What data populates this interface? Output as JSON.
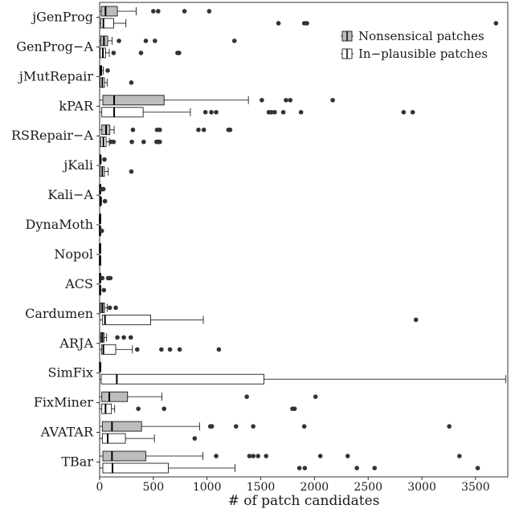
{
  "chart_data": {
    "type": "boxplot",
    "orientation": "horizontal",
    "xlabel": "# of patch candidates",
    "ylabel": "",
    "xlim": [
      0,
      3800
    ],
    "xticks": [
      0,
      500,
      1000,
      1500,
      2000,
      2500,
      3000,
      3500
    ],
    "grid": false,
    "legend_position": "top-right",
    "series": [
      {
        "name": "Nonsensical patches",
        "color": "#bdbdbd"
      },
      {
        "name": "In−plausible patches",
        "color": "#ffffff"
      }
    ],
    "categories": [
      "jGenProg",
      "GenProg−A",
      "jMutRepair",
      "kPAR",
      "RSRepair−A",
      "jKali",
      "Kali−A",
      "DynaMoth",
      "Nopol",
      "ACS",
      "Cardumen",
      "ARJA",
      "SimFix",
      "FixMiner",
      "AVATAR",
      "TBar"
    ],
    "boxes": [
      {
        "category": "jGenProg",
        "nonsensical": {
          "min": 0,
          "q1": 15,
          "median": 55,
          "q3": 165,
          "max": 340,
          "outliers": [
            500,
            545,
            790,
            1020
          ]
        },
        "inplausible": {
          "min": 0,
          "q1": 10,
          "median": 35,
          "q3": 130,
          "max": 245,
          "outliers": [
            1665,
            1905,
            1930,
            3690
          ]
        }
      },
      {
        "category": "GenProg−A",
        "nonsensical": {
          "min": 0,
          "q1": 10,
          "median": 40,
          "q3": 75,
          "max": 115,
          "outliers": [
            180,
            430,
            515,
            1255
          ]
        },
        "inplausible": {
          "min": 0,
          "q1": 5,
          "median": 30,
          "q3": 55,
          "max": 90,
          "outliers": [
            130,
            385,
            725,
            740
          ]
        }
      },
      {
        "category": "jMutRepair",
        "nonsensical": {
          "min": 0,
          "q1": 2,
          "median": 10,
          "q3": 20,
          "max": 35,
          "outliers": [
            75
          ]
        },
        "inplausible": {
          "min": 0,
          "q1": 5,
          "median": 25,
          "q3": 45,
          "max": 70,
          "outliers": [
            295
          ]
        }
      },
      {
        "category": "kPAR",
        "nonsensical": {
          "min": 0,
          "q1": 30,
          "median": 135,
          "q3": 600,
          "max": 1385,
          "outliers": [
            1510,
            1735,
            1775,
            2170
          ]
        },
        "inplausible": {
          "min": 0,
          "q1": 20,
          "median": 135,
          "q3": 405,
          "max": 845,
          "outliers": [
            985,
            1040,
            1085,
            1575,
            1600,
            1630,
            1710,
            1875,
            2830,
            2915
          ]
        }
      },
      {
        "category": "RSRepair−A",
        "nonsensical": {
          "min": 0,
          "q1": 20,
          "median": 60,
          "q3": 95,
          "max": 135,
          "outliers": [
            310,
            535,
            560,
            920,
            970,
            1200,
            1215
          ]
        },
        "inplausible": {
          "min": 0,
          "q1": 10,
          "median": 35,
          "q3": 60,
          "max": 90,
          "outliers": [
            105,
            130,
            300,
            410,
            530,
            545,
            560
          ]
        }
      },
      {
        "category": "jKali",
        "nonsensical": {
          "min": 0,
          "q1": 0,
          "median": 5,
          "q3": 10,
          "max": 15,
          "outliers": [
            45
          ]
        },
        "inplausible": {
          "min": 0,
          "q1": 5,
          "median": 25,
          "q3": 45,
          "max": 80,
          "outliers": [
            295
          ]
        }
      },
      {
        "category": "Kali−A",
        "nonsensical": {
          "min": 0,
          "q1": 0,
          "median": 2,
          "q3": 5,
          "max": 10,
          "outliers": [
            20,
            35
          ]
        },
        "inplausible": {
          "min": 0,
          "q1": 0,
          "median": 5,
          "q3": 10,
          "max": 20,
          "outliers": [
            50
          ]
        }
      },
      {
        "category": "DynaMoth",
        "nonsensical": {
          "min": 0,
          "q1": 0,
          "median": 1,
          "q3": 2,
          "max": 3,
          "outliers": []
        },
        "inplausible": {
          "min": 0,
          "q1": 0,
          "median": 1,
          "q3": 3,
          "max": 6,
          "outliers": [
            20
          ]
        }
      },
      {
        "category": "Nopol",
        "nonsensical": {
          "min": 0,
          "q1": 0,
          "median": 1,
          "q3": 2,
          "max": 3,
          "outliers": []
        },
        "inplausible": {
          "min": 0,
          "q1": 0,
          "median": 1,
          "q3": 2,
          "max": 4,
          "outliers": []
        }
      },
      {
        "category": "ACS",
        "nonsensical": {
          "min": 0,
          "q1": 0,
          "median": 2,
          "q3": 5,
          "max": 10,
          "outliers": [
            25,
            80,
            100
          ]
        },
        "inplausible": {
          "min": 0,
          "q1": 0,
          "median": 2,
          "q3": 5,
          "max": 10,
          "outliers": [
            40
          ]
        }
      },
      {
        "category": "Cardumen",
        "nonsensical": {
          "min": 0,
          "q1": 5,
          "median": 25,
          "q3": 45,
          "max": 70,
          "outliers": [
            95,
            150
          ]
        },
        "inplausible": {
          "min": 0,
          "q1": 25,
          "median": 50,
          "q3": 475,
          "max": 965,
          "outliers": [
            2945
          ]
        }
      },
      {
        "category": "ARJA",
        "nonsensical": {
          "min": 0,
          "q1": 10,
          "median": 25,
          "q3": 40,
          "max": 65,
          "outliers": [
            165,
            225,
            290
          ]
        },
        "inplausible": {
          "min": 0,
          "q1": 20,
          "median": 35,
          "q3": 150,
          "max": 305,
          "outliers": [
            350,
            575,
            655,
            745,
            1110
          ]
        }
      },
      {
        "category": "SimFix",
        "nonsensical": {
          "min": 0,
          "q1": 0,
          "median": 2,
          "q3": 5,
          "max": 10,
          "outliers": []
        },
        "inplausible": {
          "min": 0,
          "q1": 15,
          "median": 160,
          "q3": 1530,
          "max": 3780,
          "outliers": []
        }
      },
      {
        "category": "FixMiner",
        "nonsensical": {
          "min": 0,
          "q1": 20,
          "median": 90,
          "q3": 260,
          "max": 580,
          "outliers": [
            1370,
            2010
          ]
        },
        "inplausible": {
          "min": 0,
          "q1": 20,
          "median": 55,
          "q3": 110,
          "max": 140,
          "outliers": [
            360,
            600,
            1795,
            1815
          ]
        }
      },
      {
        "category": "AVATAR",
        "nonsensical": {
          "min": 0,
          "q1": 25,
          "median": 115,
          "q3": 390,
          "max": 930,
          "outliers": [
            1030,
            1045,
            1270,
            1430,
            1905,
            3255
          ]
        },
        "inplausible": {
          "min": 0,
          "q1": 25,
          "median": 75,
          "q3": 240,
          "max": 510,
          "outliers": [
            885
          ]
        }
      },
      {
        "category": "TBar",
        "nonsensical": {
          "min": 0,
          "q1": 30,
          "median": 115,
          "q3": 430,
          "max": 960,
          "outliers": [
            1085,
            1395,
            1430,
            1475,
            1550,
            2055,
            2310,
            3350
          ]
        },
        "inplausible": {
          "min": 0,
          "q1": 30,
          "median": 120,
          "q3": 640,
          "max": 1260,
          "outliers": [
            1860,
            1910,
            2395,
            2560,
            3520
          ]
        }
      }
    ]
  }
}
